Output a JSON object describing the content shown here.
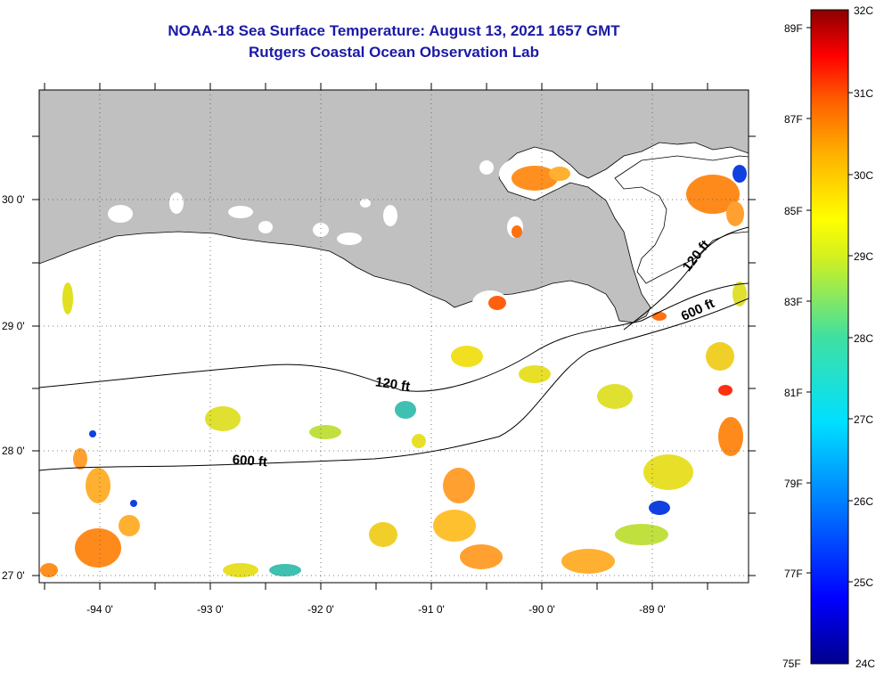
{
  "title": {
    "line1": "NOAA-18 Sea Surface Temperature:  August 13, 2021 1657 GMT",
    "line2": "Rutgers Coastal Ocean Observation Lab"
  },
  "axes": {
    "lon_labels": [
      "-94 0'",
      "-93 0'",
      "-92 0'",
      "-91 0'",
      "-90 0'",
      "-89 0'"
    ],
    "lat_labels": [
      "30 0'",
      "29 0'",
      "28 0'",
      "27 0'"
    ]
  },
  "contours": {
    "c120_west": "120 ft",
    "c120_east": "120 ft",
    "c600_west": "600 ft",
    "c600_east": "600 ft"
  },
  "colorbar": {
    "fahrenheit": [
      "89F",
      "87F",
      "85F",
      "83F",
      "81F",
      "79F",
      "77F",
      "75F"
    ],
    "celsius": [
      "32C",
      "31C",
      "30C",
      "29C",
      "28C",
      "27C",
      "26C",
      "25C",
      "24C"
    ]
  },
  "colors": {
    "land": "#c0c0c0",
    "title": "#1a1aa6",
    "warm": "#ff8c1a",
    "mid": "#f0e020",
    "cool": "#30c0b0",
    "cold": "#1040e0"
  }
}
